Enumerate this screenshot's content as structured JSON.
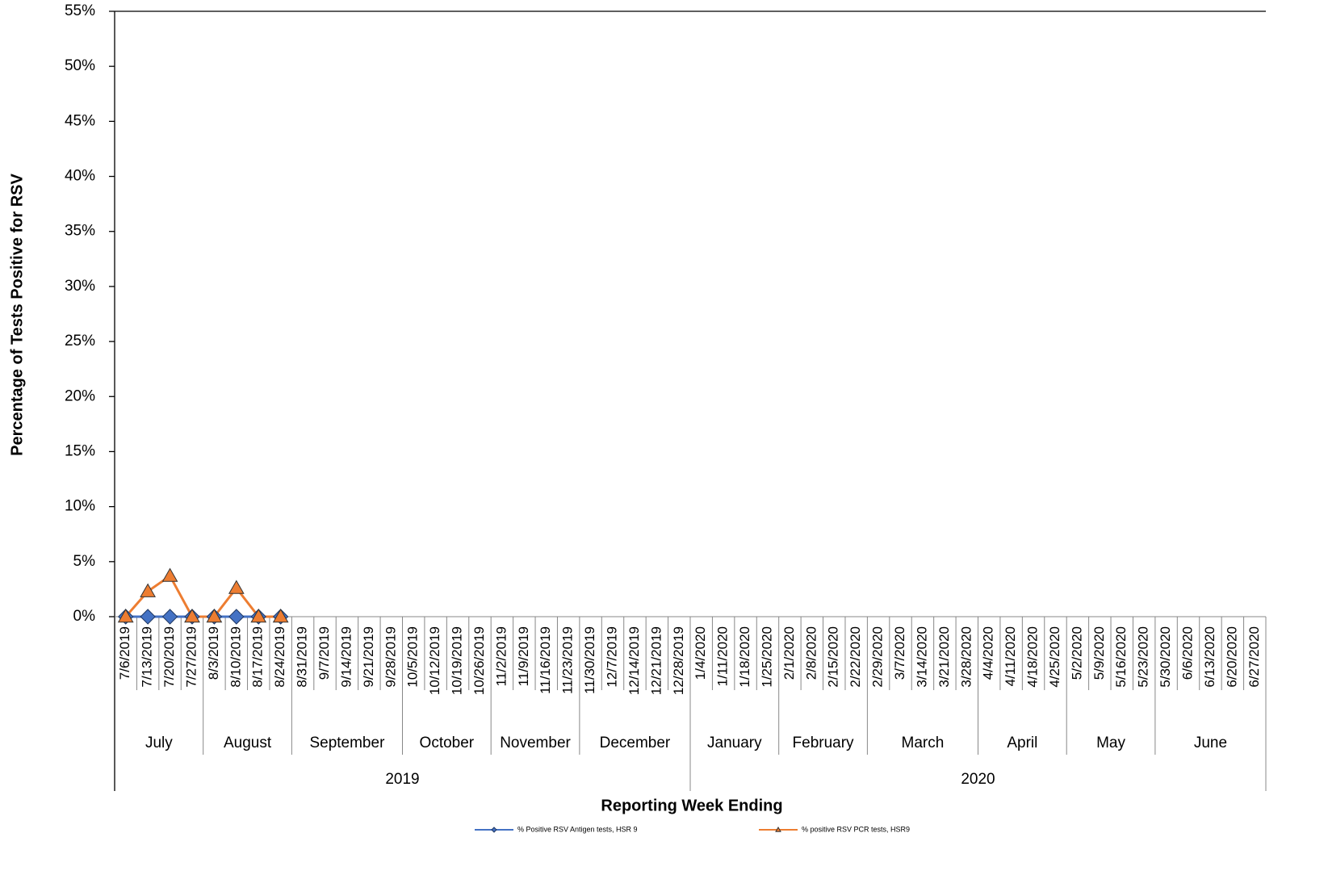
{
  "chart_data": {
    "type": "line",
    "y_label": "Percentage of Tests Positive for RSV",
    "x_label": "Reporting Week Ending",
    "categories": [
      "7/6/2019",
      "7/13/2019",
      "7/20/2019",
      "7/27/2019",
      "8/3/2019",
      "8/10/2019",
      "8/17/2019",
      "8/24/2019",
      "8/31/2019",
      "9/7/2019",
      "9/14/2019",
      "9/21/2019",
      "9/28/2019",
      "10/5/2019",
      "10/12/2019",
      "10/19/2019",
      "10/26/2019",
      "11/2/2019",
      "11/9/2019",
      "11/16/2019",
      "11/23/2019",
      "11/30/2019",
      "12/7/2019",
      "12/14/2019",
      "12/21/2019",
      "12/28/2019",
      "1/4/2020",
      "1/11/2020",
      "1/18/2020",
      "1/25/2020",
      "2/1/2020",
      "2/8/2020",
      "2/15/2020",
      "2/22/2020",
      "2/29/2020",
      "3/7/2020",
      "3/14/2020",
      "3/21/2020",
      "3/28/2020",
      "4/4/2020",
      "4/11/2020",
      "4/18/2020",
      "4/25/2020",
      "5/2/2020",
      "5/9/2020",
      "5/16/2020",
      "5/23/2020",
      "5/30/2020",
      "6/6/2020",
      "6/13/2020",
      "6/20/2020",
      "6/27/2020"
    ],
    "month_groups": [
      {
        "label": "July",
        "span": 4
      },
      {
        "label": "August",
        "span": 4
      },
      {
        "label": "September",
        "span": 5
      },
      {
        "label": "October",
        "span": 4
      },
      {
        "label": "November",
        "span": 4
      },
      {
        "label": "December",
        "span": 5
      },
      {
        "label": "January",
        "span": 4
      },
      {
        "label": "February",
        "span": 4
      },
      {
        "label": "March",
        "span": 5
      },
      {
        "label": "April",
        "span": 4
      },
      {
        "label": "May",
        "span": 4
      },
      {
        "label": "June",
        "span": 5
      }
    ],
    "year_groups": [
      {
        "label": "2019",
        "span": 6
      },
      {
        "label": "2020",
        "span": 6
      }
    ],
    "series": [
      {
        "name": "% Positive RSV Antigen tests, HSR 9",
        "color": "#4472c4",
        "marker": "diamond",
        "values": [
          0,
          0,
          0,
          0,
          0,
          0,
          0,
          0,
          null,
          null,
          null,
          null,
          null,
          null,
          null,
          null,
          null,
          null,
          null,
          null,
          null,
          null,
          null,
          null,
          null,
          null,
          null,
          null,
          null,
          null,
          null,
          null,
          null,
          null,
          null,
          null,
          null,
          null,
          null,
          null,
          null,
          null,
          null,
          null,
          null,
          null,
          null,
          null,
          null,
          null,
          null,
          null
        ]
      },
      {
        "name": "% positive RSV PCR tests, HSR9",
        "color": "#ed7d31",
        "marker": "triangle",
        "values": [
          0,
          2.3,
          3.7,
          0,
          0,
          2.6,
          0,
          0,
          null,
          null,
          null,
          null,
          null,
          null,
          null,
          null,
          null,
          null,
          null,
          null,
          null,
          null,
          null,
          null,
          null,
          null,
          null,
          null,
          null,
          null,
          null,
          null,
          null,
          null,
          null,
          null,
          null,
          null,
          null,
          null,
          null,
          null,
          null,
          null,
          null,
          null,
          null,
          null,
          null,
          null,
          null,
          null
        ]
      }
    ],
    "ylim": [
      0,
      55
    ],
    "yticks": [
      {
        "value": 0,
        "label": "0%"
      },
      {
        "value": 5,
        "label": "5%"
      },
      {
        "value": 10,
        "label": "10%"
      },
      {
        "value": 15,
        "label": "15%"
      },
      {
        "value": 20,
        "label": "20%"
      },
      {
        "value": 25,
        "label": "25%"
      },
      {
        "value": 30,
        "label": "30%"
      },
      {
        "value": 35,
        "label": "35%"
      },
      {
        "value": 40,
        "label": "40%"
      },
      {
        "value": 45,
        "label": "45%"
      },
      {
        "value": 50,
        "label": "50%"
      },
      {
        "value": 55,
        "label": "55%"
      }
    ]
  }
}
